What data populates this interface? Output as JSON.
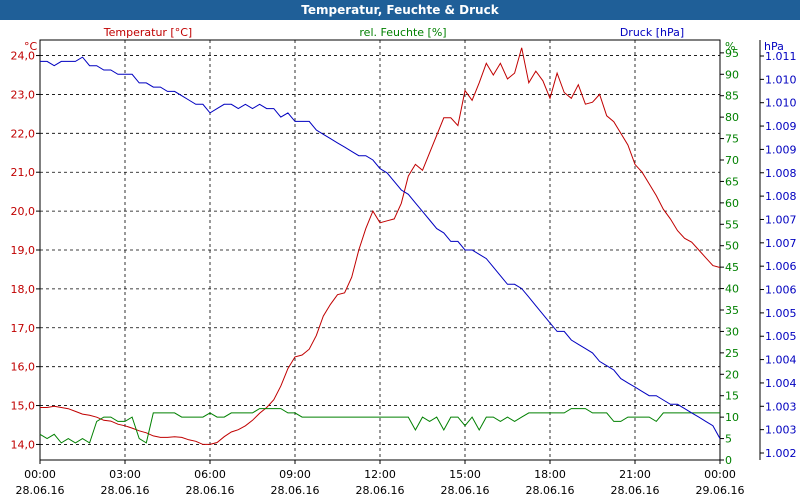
{
  "window": {
    "title": "Temperatur, Feuchte & Druck"
  },
  "colors": {
    "temperature": "#c00000",
    "humidity": "#008000",
    "pressure": "#0000c0",
    "titlebar": "#1f5f98",
    "grid": "#000000"
  },
  "chart_data": {
    "type": "line",
    "title": "Temperatur, Feuchte & Druck",
    "legend": [
      {
        "name": "Temperatur [°C]",
        "color": "#c00000"
      },
      {
        "name": "rel. Feuchte [%]",
        "color": "#008000"
      },
      {
        "name": "Druck [hPa]",
        "color": "#0000c0"
      }
    ],
    "axes": {
      "left": {
        "unit": "°C",
        "ylim": [
          13.6,
          24.4
        ],
        "ticks": [
          "14,0",
          "15,0",
          "16,0",
          "17,0",
          "18,0",
          "19,0",
          "20,0",
          "21,0",
          "22,0",
          "23,0",
          "24,0"
        ]
      },
      "right1": {
        "unit": "%",
        "ylim": [
          0,
          98
        ],
        "ticks": [
          "0",
          "5",
          "10",
          "15",
          "20",
          "25",
          "30",
          "35",
          "40",
          "45",
          "50",
          "55",
          "60",
          "65",
          "70",
          "75",
          "80",
          "85",
          "90",
          "95"
        ]
      },
      "right2": {
        "unit": "hPa",
        "ylim": [
          1.0015,
          1.0113
        ],
        "ticks": [
          "1.002",
          "1.003",
          "1.003",
          "1.004",
          "1.004",
          "1.005",
          "1.005",
          "1.006",
          "1.006",
          "1.007",
          "1.007",
          "1.008",
          "1.008",
          "1.009",
          "1.009",
          "1.010",
          "1.010",
          "1.011"
        ]
      },
      "x": {
        "range_hours": [
          0,
          24
        ],
        "ticks": [
          {
            "time": "00:00",
            "date": "28.06.16"
          },
          {
            "time": "03:00",
            "date": "28.06.16"
          },
          {
            "time": "06:00",
            "date": "28.06.16"
          },
          {
            "time": "09:00",
            "date": "28.06.16"
          },
          {
            "time": "12:00",
            "date": "28.06.16"
          },
          {
            "time": "15:00",
            "date": "28.06.16"
          },
          {
            "time": "18:00",
            "date": "28.06.16"
          },
          {
            "time": "21:00",
            "date": "28.06.16"
          },
          {
            "time": "00:00",
            "date": "29.06.16"
          }
        ]
      }
    },
    "series": [
      {
        "name": "Temperatur [°C]",
        "axis": "left",
        "color": "#c00000",
        "x": [
          0,
          0.25,
          0.5,
          0.75,
          1,
          1.25,
          1.5,
          1.75,
          2,
          2.25,
          2.5,
          2.75,
          3,
          3.25,
          3.5,
          3.75,
          4,
          4.25,
          4.5,
          4.75,
          5,
          5.25,
          5.5,
          5.75,
          6,
          6.25,
          6.5,
          6.75,
          7,
          7.25,
          7.5,
          7.75,
          8,
          8.25,
          8.5,
          8.75,
          9,
          9.25,
          9.5,
          9.75,
          10,
          10.25,
          10.5,
          10.75,
          11,
          11.25,
          11.5,
          11.75,
          12,
          12.25,
          12.5,
          12.75,
          13,
          13.25,
          13.5,
          13.75,
          14,
          14.25,
          14.5,
          14.75,
          15,
          15.25,
          15.5,
          15.75,
          16,
          16.25,
          16.5,
          16.75,
          17,
          17.25,
          17.5,
          17.75,
          18,
          18.25,
          18.5,
          18.75,
          19,
          19.25,
          19.5,
          19.75,
          20,
          20.25,
          20.5,
          20.75,
          21,
          21.25,
          21.5,
          21.75,
          22,
          22.25,
          22.5,
          22.75,
          23,
          23.25,
          23.5,
          23.75,
          24
        ],
        "y": [
          14.95,
          14.95,
          14.98,
          14.95,
          14.92,
          14.85,
          14.78,
          14.75,
          14.7,
          14.62,
          14.6,
          14.52,
          14.48,
          14.42,
          14.35,
          14.3,
          14.22,
          14.18,
          14.18,
          14.2,
          14.18,
          14.12,
          14.08,
          14.0,
          14.0,
          14.05,
          14.2,
          14.32,
          14.38,
          14.48,
          14.62,
          14.8,
          14.95,
          15.15,
          15.5,
          15.95,
          16.25,
          16.3,
          16.45,
          16.8,
          17.3,
          17.6,
          17.85,
          17.9,
          18.3,
          19.0,
          19.55,
          20.0,
          19.7,
          19.75,
          19.8,
          20.2,
          20.9,
          21.2,
          21.05,
          21.5,
          21.95,
          22.4,
          22.4,
          22.2,
          23.1,
          22.85,
          23.3,
          23.8,
          23.5,
          23.8,
          23.4,
          23.55,
          24.2,
          23.3,
          23.6,
          23.35,
          22.9,
          23.55,
          23.05,
          22.9,
          23.25,
          22.75,
          22.8,
          23.0,
          22.45,
          22.3,
          22.0,
          21.7,
          21.2,
          21.0,
          20.7,
          20.4,
          20.05,
          19.8,
          19.5,
          19.3,
          19.2,
          19.0,
          18.8,
          18.6,
          18.55
        ]
      },
      {
        "name": "rel. Feuchte [%]",
        "axis": "right1",
        "color": "#008000",
        "x": [
          0,
          0.25,
          0.5,
          0.75,
          1,
          1.25,
          1.5,
          1.75,
          2,
          2.25,
          2.5,
          2.75,
          3,
          3.25,
          3.5,
          3.75,
          4,
          4.25,
          4.5,
          4.75,
          5,
          5.25,
          5.5,
          5.75,
          6,
          6.25,
          6.5,
          6.75,
          7,
          7.25,
          7.5,
          7.75,
          8,
          8.25,
          8.5,
          8.75,
          9,
          9.25,
          9.5,
          9.75,
          10,
          10.25,
          10.5,
          10.75,
          11,
          11.25,
          11.5,
          11.75,
          12,
          12.25,
          12.5,
          12.75,
          13,
          13.25,
          13.5,
          13.75,
          14,
          14.25,
          14.5,
          14.75,
          15,
          15.25,
          15.5,
          15.75,
          16,
          16.25,
          16.5,
          16.75,
          17,
          17.25,
          17.5,
          17.75,
          18,
          18.25,
          18.5,
          18.75,
          19,
          19.25,
          19.5,
          19.75,
          20,
          20.25,
          20.5,
          20.75,
          21,
          21.25,
          21.5,
          21.75,
          22,
          22.25,
          22.5,
          22.75,
          23,
          23.25,
          23.5,
          23.75,
          24
        ],
        "y": [
          6,
          5,
          6,
          4,
          5,
          4,
          5,
          4,
          9,
          10,
          10,
          9,
          9,
          10,
          5,
          4,
          11,
          11,
          11,
          11,
          10,
          10,
          10,
          10,
          11,
          10,
          10,
          11,
          11,
          11,
          11,
          12,
          12,
          12,
          12,
          11,
          11,
          10,
          10,
          10,
          10,
          10,
          10,
          10,
          10,
          10,
          10,
          10,
          10,
          10,
          10,
          10,
          10,
          7,
          10,
          9,
          10,
          7,
          10,
          10,
          8,
          10,
          7,
          10,
          10,
          9,
          10,
          9,
          10,
          11,
          11,
          11,
          11,
          11,
          11,
          12,
          12,
          12,
          11,
          11,
          11,
          9,
          9,
          10,
          10,
          10,
          10,
          9,
          11,
          11,
          11,
          11,
          11,
          11,
          11,
          11,
          11
        ]
      },
      {
        "name": "Druck [hPa]",
        "axis": "right2",
        "color": "#0000c0",
        "x": [
          0,
          0.25,
          0.5,
          0.75,
          1,
          1.25,
          1.5,
          1.75,
          2,
          2.25,
          2.5,
          2.75,
          3,
          3.25,
          3.5,
          3.75,
          4,
          4.25,
          4.5,
          4.75,
          5,
          5.25,
          5.5,
          5.75,
          6,
          6.25,
          6.5,
          6.75,
          7,
          7.25,
          7.5,
          7.75,
          8,
          8.25,
          8.5,
          8.75,
          9,
          9.25,
          9.5,
          9.75,
          10,
          10.25,
          10.5,
          10.75,
          11,
          11.25,
          11.5,
          11.75,
          12,
          12.25,
          12.5,
          12.75,
          13,
          13.25,
          13.5,
          13.75,
          14,
          14.25,
          14.5,
          14.75,
          15,
          15.25,
          15.5,
          15.75,
          16,
          16.25,
          16.5,
          16.75,
          17,
          17.25,
          17.5,
          17.75,
          18,
          18.25,
          18.5,
          18.75,
          19,
          19.25,
          19.5,
          19.75,
          20,
          20.25,
          20.5,
          20.75,
          21,
          21.25,
          21.5,
          21.75,
          22,
          22.25,
          22.5,
          22.75,
          23,
          23.25,
          23.5,
          23.75,
          24
        ],
        "y": [
          1.0108,
          1.0108,
          1.0107,
          1.0108,
          1.0108,
          1.0108,
          1.0109,
          1.0107,
          1.0107,
          1.0106,
          1.0106,
          1.0105,
          1.0105,
          1.0105,
          1.0103,
          1.0103,
          1.0102,
          1.0102,
          1.0101,
          1.0101,
          1.01,
          1.0099,
          1.0098,
          1.0098,
          1.0096,
          1.0097,
          1.0098,
          1.0098,
          1.0097,
          1.0098,
          1.0097,
          1.0098,
          1.0097,
          1.0097,
          1.0095,
          1.0096,
          1.0094,
          1.0094,
          1.0094,
          1.0092,
          1.0091,
          1.009,
          1.0089,
          1.0088,
          1.0087,
          1.0086,
          1.0086,
          1.0085,
          1.0083,
          1.0082,
          1.008,
          1.0078,
          1.0077,
          1.0075,
          1.0073,
          1.0071,
          1.0069,
          1.0068,
          1.0066,
          1.0066,
          1.0064,
          1.0064,
          1.0063,
          1.0062,
          1.006,
          1.0058,
          1.0056,
          1.0056,
          1.0055,
          1.0053,
          1.0051,
          1.0049,
          1.0047,
          1.0045,
          1.0045,
          1.0043,
          1.0042,
          1.0041,
          1.004,
          1.0038,
          1.0037,
          1.0036,
          1.0034,
          1.0033,
          1.0032,
          1.0031,
          1.003,
          1.003,
          1.0029,
          1.0028,
          1.0028,
          1.0027,
          1.0026,
          1.0025,
          1.0024,
          1.0023,
          1.002
        ]
      }
    ]
  }
}
